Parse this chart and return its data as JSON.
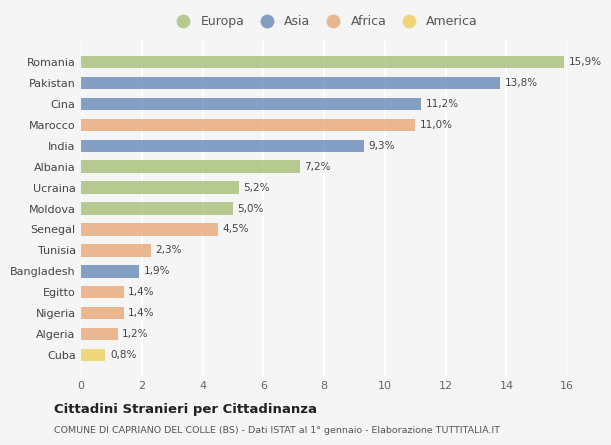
{
  "countries": [
    "Romania",
    "Pakistan",
    "Cina",
    "Marocco",
    "India",
    "Albania",
    "Ucraina",
    "Moldova",
    "Senegal",
    "Tunisia",
    "Bangladesh",
    "Egitto",
    "Nigeria",
    "Algeria",
    "Cuba"
  ],
  "values": [
    15.9,
    13.8,
    11.2,
    11.0,
    9.3,
    7.2,
    5.2,
    5.0,
    4.5,
    2.3,
    1.9,
    1.4,
    1.4,
    1.2,
    0.8
  ],
  "labels": [
    "15,9%",
    "13,8%",
    "11,2%",
    "11,0%",
    "9,3%",
    "7,2%",
    "5,2%",
    "5,0%",
    "4,5%",
    "2,3%",
    "1,9%",
    "1,4%",
    "1,4%",
    "1,2%",
    "0,8%"
  ],
  "continents": [
    "Europa",
    "Asia",
    "Asia",
    "Africa",
    "Asia",
    "Europa",
    "Europa",
    "Europa",
    "Africa",
    "Africa",
    "Asia",
    "Africa",
    "Africa",
    "Africa",
    "America"
  ],
  "colors": {
    "Europa": "#a8c07a",
    "Asia": "#6b8cba",
    "Africa": "#e8aa7a",
    "America": "#f0d060"
  },
  "legend_order": [
    "Europa",
    "Asia",
    "Africa",
    "America"
  ],
  "xlim": [
    0,
    16
  ],
  "xticks": [
    0,
    2,
    4,
    6,
    8,
    10,
    12,
    14,
    16
  ],
  "title": "Cittadini Stranieri per Cittadinanza",
  "subtitle": "COMUNE DI CAPRIANO DEL COLLE (BS) - Dati ISTAT al 1° gennaio - Elaborazione TUTTITALIA.IT",
  "bg_color": "#f5f5f5",
  "grid_color": "#ffffff",
  "bar_alpha": 0.82
}
